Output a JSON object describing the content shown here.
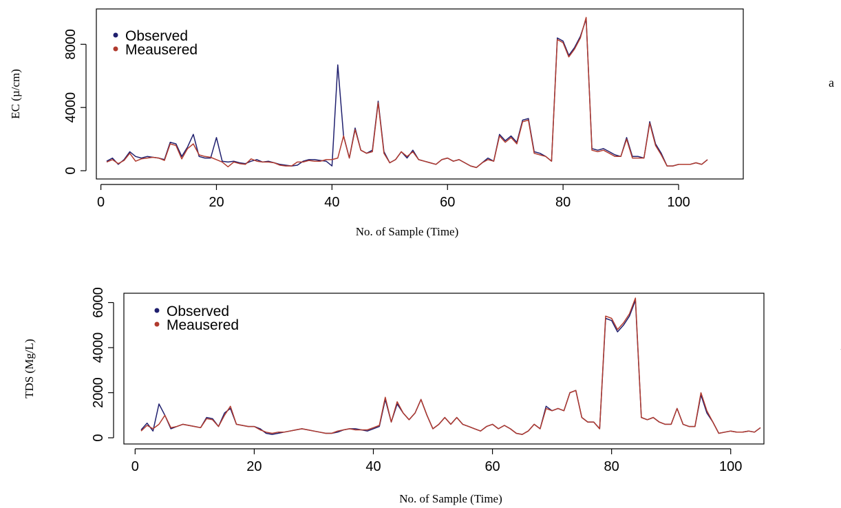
{
  "colors": {
    "observed": "#1f1f6e",
    "measured": "#b03a2e"
  },
  "chart_data": [
    {
      "type": "line",
      "panel_label": "a",
      "xlabel": "No. of Sample (Time)",
      "ylabel": "EC (µ/cm)",
      "xlim": [
        1,
        105
      ],
      "ylim": [
        0,
        9800
      ],
      "xticks": [
        0,
        20,
        40,
        60,
        80,
        100
      ],
      "yticks": [
        0,
        4000,
        8000
      ],
      "legend_position": "top-left",
      "x": [
        1,
        2,
        3,
        4,
        5,
        6,
        7,
        8,
        9,
        10,
        11,
        12,
        13,
        14,
        15,
        16,
        17,
        18,
        19,
        20,
        21,
        22,
        23,
        24,
        25,
        26,
        27,
        28,
        29,
        30,
        31,
        32,
        33,
        34,
        35,
        36,
        37,
        38,
        39,
        40,
        41,
        42,
        43,
        44,
        45,
        46,
        47,
        48,
        49,
        50,
        51,
        52,
        53,
        54,
        55,
        56,
        57,
        58,
        59,
        60,
        61,
        62,
        63,
        64,
        65,
        66,
        67,
        68,
        69,
        70,
        71,
        72,
        73,
        74,
        75,
        76,
        77,
        78,
        79,
        80,
        81,
        82,
        83,
        84,
        85,
        86,
        87,
        88,
        89,
        90,
        91,
        92,
        93,
        94,
        95,
        96,
        97,
        98,
        99,
        100,
        101,
        102,
        103,
        104,
        105
      ],
      "series": [
        {
          "name": "Observed",
          "values": [
            600,
            800,
            400,
            700,
            1200,
            900,
            800,
            900,
            850,
            800,
            700,
            1800,
            1700,
            900,
            1500,
            2300,
            900,
            800,
            800,
            2100,
            600,
            550,
            600,
            500,
            450,
            600,
            700,
            550,
            600,
            500,
            400,
            350,
            300,
            350,
            600,
            700,
            700,
            650,
            600,
            300,
            6700,
            2200,
            800,
            2700,
            1300,
            1100,
            1300,
            4400,
            1200,
            500,
            700,
            1200,
            800,
            1300,
            700,
            600,
            500,
            400,
            700,
            800,
            600,
            700,
            500,
            300,
            200,
            500,
            800,
            600,
            2300,
            1900,
            2200,
            1800,
            3200,
            3300,
            1200,
            1100,
            900,
            600,
            8400,
            8200,
            7300,
            7800,
            8500,
            9600,
            1400,
            1300,
            1400,
            1200,
            1000,
            900,
            2100,
            900,
            900,
            800,
            3100,
            1700,
            1100,
            300,
            300,
            400,
            400,
            400,
            500,
            400,
            700
          ]
        },
        {
          "name": "Meausered",
          "values": [
            550,
            700,
            450,
            650,
            1100,
            600,
            750,
            800,
            850,
            800,
            650,
            1700,
            1600,
            750,
            1400,
            1700,
            1000,
            900,
            850,
            700,
            550,
            250,
            550,
            450,
            400,
            750,
            600,
            550,
            550,
            500,
            350,
            300,
            300,
            550,
            550,
            650,
            600,
            600,
            700,
            700,
            800,
            2200,
            800,
            2600,
            1300,
            1100,
            1200,
            4300,
            1100,
            500,
            700,
            1200,
            900,
            1200,
            700,
            600,
            500,
            400,
            700,
            800,
            600,
            700,
            500,
            300,
            200,
            500,
            700,
            600,
            2200,
            1800,
            2100,
            1700,
            3100,
            3200,
            1100,
            1000,
            900,
            600,
            8300,
            8100,
            7200,
            7700,
            8400,
            9700,
            1300,
            1200,
            1300,
            1100,
            900,
            900,
            2000,
            800,
            800,
            800,
            3000,
            1600,
            1000,
            300,
            300,
            400,
            400,
            400,
            500,
            400,
            700
          ]
        }
      ]
    },
    {
      "type": "line",
      "panel_label": "b",
      "xlabel": "No. of Sample (Time)",
      "ylabel": "TDS (Mg/L)",
      "xlim": [
        1,
        105
      ],
      "ylim": [
        0,
        6200
      ],
      "xticks": [
        0,
        20,
        40,
        60,
        80,
        100
      ],
      "yticks": [
        0,
        2000,
        4000,
        6000
      ],
      "legend_position": "top-left",
      "x": [
        1,
        2,
        3,
        4,
        5,
        6,
        7,
        8,
        9,
        10,
        11,
        12,
        13,
        14,
        15,
        16,
        17,
        18,
        19,
        20,
        21,
        22,
        23,
        24,
        25,
        26,
        27,
        28,
        29,
        30,
        31,
        32,
        33,
        34,
        35,
        36,
        37,
        38,
        39,
        40,
        41,
        42,
        43,
        44,
        45,
        46,
        47,
        48,
        49,
        50,
        51,
        52,
        53,
        54,
        55,
        56,
        57,
        58,
        59,
        60,
        61,
        62,
        63,
        64,
        65,
        66,
        67,
        68,
        69,
        70,
        71,
        72,
        73,
        74,
        75,
        76,
        77,
        78,
        79,
        80,
        81,
        82,
        83,
        84,
        85,
        86,
        87,
        88,
        89,
        90,
        91,
        92,
        93,
        94,
        95,
        96,
        97,
        98,
        99,
        100,
        101,
        102,
        103,
        104,
        105
      ],
      "series": [
        {
          "name": "Observed",
          "values": [
            350,
            650,
            300,
            1500,
            1000,
            400,
            500,
            600,
            550,
            500,
            450,
            900,
            850,
            500,
            1100,
            1300,
            600,
            550,
            500,
            500,
            400,
            200,
            150,
            200,
            250,
            300,
            350,
            400,
            350,
            300,
            250,
            200,
            200,
            250,
            350,
            400,
            400,
            350,
            300,
            400,
            500,
            1700,
            700,
            1500,
            1100,
            800,
            1100,
            1700,
            1000,
            400,
            600,
            900,
            600,
            900,
            600,
            500,
            400,
            300,
            500,
            600,
            400,
            550,
            400,
            200,
            150,
            300,
            600,
            400,
            1400,
            1200,
            1300,
            1200,
            2000,
            2100,
            900,
            700,
            700,
            400,
            5300,
            5200,
            4700,
            5000,
            5400,
            6100,
            900,
            800,
            900,
            700,
            600,
            600,
            1300,
            600,
            500,
            500,
            1900,
            1100,
            700,
            200,
            250,
            300,
            250,
            250,
            300,
            250,
            450
          ]
        },
        {
          "name": "Meausered",
          "values": [
            300,
            550,
            400,
            600,
            1000,
            450,
            500,
            600,
            550,
            500,
            450,
            850,
            800,
            500,
            1000,
            1400,
            600,
            550,
            500,
            500,
            350,
            250,
            200,
            250,
            250,
            300,
            350,
            400,
            350,
            300,
            250,
            200,
            200,
            300,
            350,
            400,
            350,
            350,
            350,
            450,
            550,
            1800,
            700,
            1600,
            1100,
            800,
            1100,
            1700,
            1000,
            400,
            600,
            900,
            600,
            900,
            600,
            500,
            400,
            300,
            500,
            600,
            400,
            550,
            400,
            200,
            150,
            300,
            600,
            400,
            1300,
            1200,
            1300,
            1200,
            2000,
            2100,
            900,
            700,
            700,
            400,
            5400,
            5300,
            4800,
            5100,
            5500,
            6200,
            900,
            800,
            900,
            700,
            600,
            600,
            1300,
            600,
            500,
            500,
            2000,
            1200,
            700,
            200,
            250,
            300,
            250,
            250,
            300,
            250,
            450
          ]
        }
      ]
    }
  ]
}
